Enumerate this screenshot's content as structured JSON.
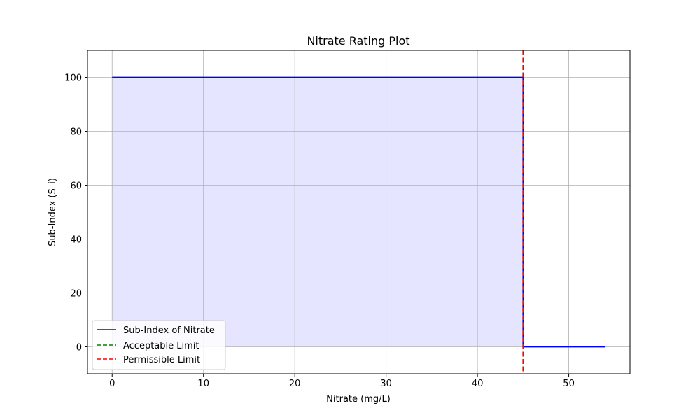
{
  "chart_data": {
    "type": "line",
    "title": "Nitrate Rating Plot",
    "xlabel": "Nitrate (mg/L)",
    "ylabel": "Sub-Index (S_i)",
    "xlim": [
      -2.7,
      56.7
    ],
    "ylim": [
      -10,
      110
    ],
    "xticks": [
      0,
      10,
      20,
      30,
      40,
      50
    ],
    "yticks": [
      0,
      20,
      40,
      60,
      80,
      100
    ],
    "grid": true,
    "legend_position": "lower-left",
    "series": [
      {
        "name": "Sub-Index of Nitrate",
        "style": "solid",
        "color": "#0000ff",
        "fill": true,
        "fill_color": "#e5e5ff",
        "x": [
          0,
          45,
          45,
          54
        ],
        "y": [
          100,
          100,
          0,
          0
        ]
      },
      {
        "name": "Acceptable Limit",
        "style": "dashed",
        "color": "#008000",
        "vline": 45
      },
      {
        "name": "Permissible Limit",
        "style": "dashed",
        "color": "#ff0000",
        "vline": 45
      }
    ]
  }
}
